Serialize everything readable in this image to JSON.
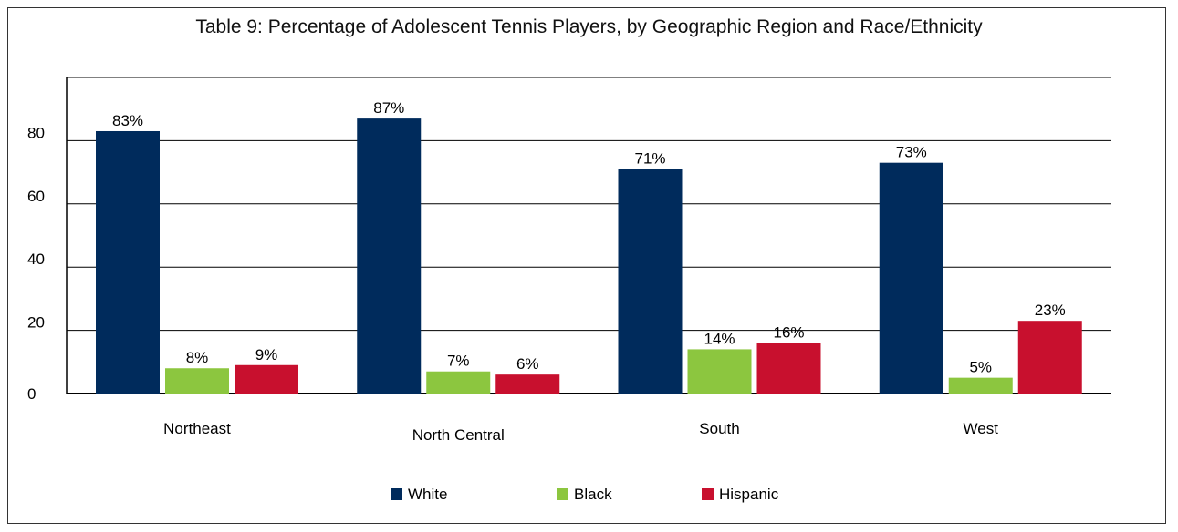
{
  "chart_data": {
    "type": "bar",
    "title": "Table 9: Percentage of Adolescent Tennis Players, by Geographic Region and Race/Ethnicity",
    "categories": [
      "Northeast",
      "North Central",
      "South",
      "West"
    ],
    "series": [
      {
        "name": "White",
        "color": "#002b5c",
        "values": [
          83,
          87,
          71,
          73
        ],
        "labels": [
          "83%",
          "87%",
          "71%",
          "73%"
        ]
      },
      {
        "name": "Black",
        "color": "#8cc63f",
        "values": [
          8,
          7,
          14,
          5
        ],
        "labels": [
          "8%",
          "7%",
          "14%",
          "5%"
        ]
      },
      {
        "name": "Hispanic",
        "color": "#c8102e",
        "values": [
          9,
          6,
          16,
          23
        ],
        "labels": [
          "9%",
          "6%",
          "16%",
          "23%"
        ]
      }
    ],
    "yticks": [
      "0",
      "20",
      "40",
      "60",
      "80"
    ],
    "ylim": [
      0,
      100
    ],
    "grid": true,
    "legend": "bottom"
  }
}
